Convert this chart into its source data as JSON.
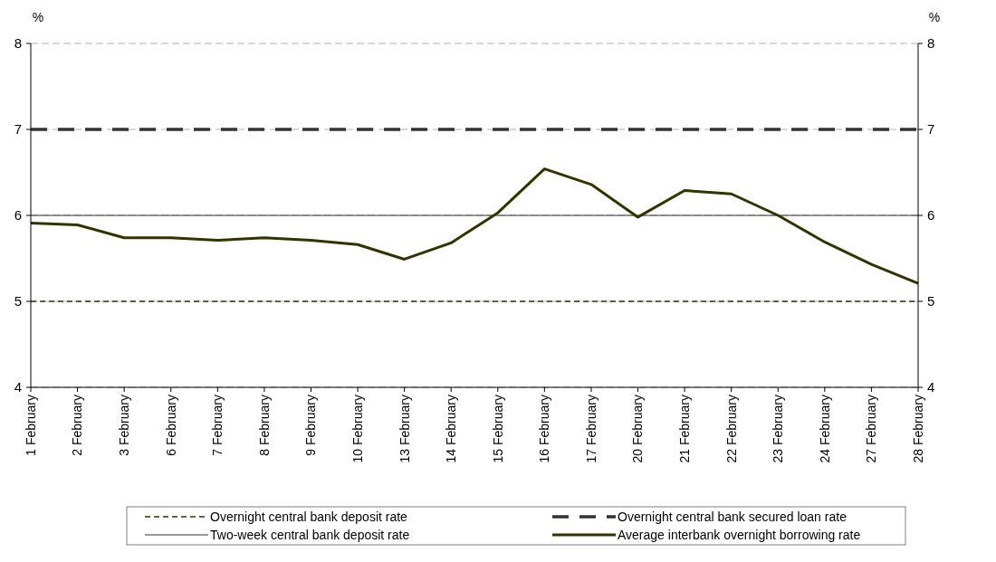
{
  "chart_data": {
    "type": "line",
    "categories": [
      "1 February",
      "2 February",
      "3 February",
      "6 February",
      "7 February",
      "8 February",
      "9 February",
      "10 February",
      "13 February",
      "14 February",
      "15 February",
      "16 February",
      "17 February",
      "20 February",
      "21 February",
      "22 February",
      "23 February",
      "24 February",
      "27 February",
      "28 February"
    ],
    "series": [
      {
        "name": "Overnight central bank deposit rate",
        "color": "#333300",
        "line_style": "dashed",
        "values": [
          5,
          5,
          5,
          5,
          5,
          5,
          5,
          5,
          5,
          5,
          5,
          5,
          5,
          5,
          5,
          5,
          5,
          5,
          5,
          5
        ]
      },
      {
        "name": "Overnight central bank secured loan rate",
        "color": "#333333",
        "line_style": "dashed",
        "values": [
          7,
          7,
          7,
          7,
          7,
          7,
          7,
          7,
          7,
          7,
          7,
          7,
          7,
          7,
          7,
          7,
          7,
          7,
          7,
          7
        ]
      },
      {
        "name": "Two-week central bank deposit rate",
        "color": "#333333",
        "line_style": "solid",
        "values": [
          6,
          6,
          6,
          6,
          6,
          6,
          6,
          6,
          6,
          6,
          6,
          6,
          6,
          6,
          6,
          6,
          6,
          6,
          6,
          6
        ]
      },
      {
        "name": "Average interbank overnight borrowing rate",
        "color": "#333300",
        "line_style": "solid",
        "values": [
          5.91,
          5.89,
          5.74,
          5.74,
          5.71,
          5.74,
          5.71,
          5.66,
          5.49,
          5.68,
          6.03,
          6.54,
          6.36,
          5.98,
          6.29,
          6.25,
          6.0,
          5.69,
          5.43,
          5.21
        ]
      }
    ],
    "ylabel": "%",
    "y2label": "%",
    "ylim": [
      4,
      8
    ],
    "yticks": [
      4,
      5,
      6,
      7,
      8
    ],
    "y2lim": [
      4,
      8
    ],
    "y2ticks": [
      4,
      5,
      6,
      7,
      8
    ],
    "grid": "y",
    "legend": "bottom",
    "marker": "none"
  }
}
